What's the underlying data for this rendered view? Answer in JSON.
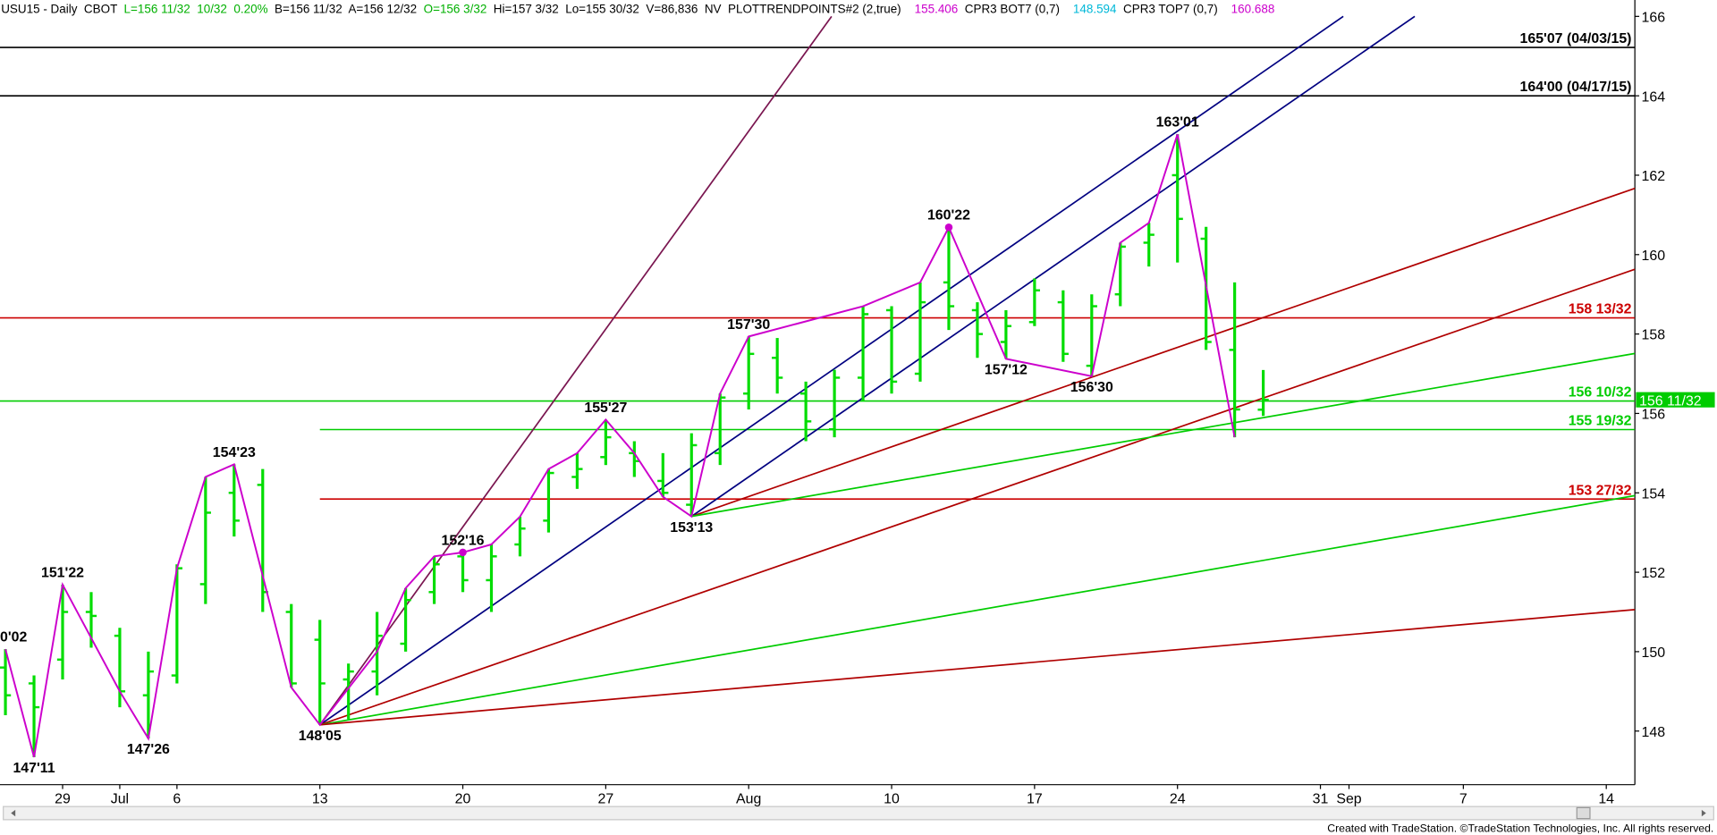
{
  "chart_data": {
    "type": "ohlc",
    "header": [
      {
        "text": "USU15 - Daily  CBOT  ",
        "color": "#000000"
      },
      {
        "text": "L=156 11/32  10/32  0.20%  ",
        "color": "#00b000"
      },
      {
        "text": "B=156 11/32  A=156 12/32  ",
        "color": "#000000"
      },
      {
        "text": "O=156 3/32  ",
        "color": "#00b000"
      },
      {
        "text": "Hi=157 3/32  Lo=155 30/32  V=86,836  NV  PLOTTRENDPOINTS#2 (2,true)    ",
        "color": "#000000"
      },
      {
        "text": "155.406",
        "color": "#cc00cc"
      },
      {
        "text": "  CPR3 BOT7 (0,7)    ",
        "color": "#000000"
      },
      {
        "text": "148.594",
        "color": "#00b8d8"
      },
      {
        "text": "  CPR3 TOP7 (0,7)    ",
        "color": "#000000"
      },
      {
        "text": "160.688",
        "color": "#cc00cc"
      }
    ],
    "footer": "Created with TradeStation. ©TradeStation Technologies, Inc. All rights reserved.",
    "xlim": [
      -0.19,
      57
    ],
    "ylim": [
      146.65,
      166.33
    ],
    "xticks": [
      {
        "value": 2,
        "label": "29"
      },
      {
        "value": 4,
        "label": "Jul"
      },
      {
        "value": 6,
        "label": "6"
      },
      {
        "value": 11,
        "label": "13"
      },
      {
        "value": 16,
        "label": "20"
      },
      {
        "value": 21,
        "label": "27"
      },
      {
        "value": 26,
        "label": "Aug"
      },
      {
        "value": 31,
        "label": "10"
      },
      {
        "value": 36,
        "label": "17"
      },
      {
        "value": 41,
        "label": "24"
      },
      {
        "value": 46,
        "label": "31"
      },
      {
        "value": 47,
        "label": "Sep"
      },
      {
        "value": 51,
        "label": "7"
      },
      {
        "value": 56,
        "label": "14"
      }
    ],
    "yticks": [
      148,
      150,
      152,
      154,
      156,
      158,
      160,
      162,
      164,
      166
    ],
    "bar_color": "#00dd00",
    "x": [
      0,
      1,
      2,
      3,
      4,
      5,
      6,
      7,
      8,
      9,
      10,
      11,
      12,
      13,
      14,
      15,
      16,
      17,
      18,
      19,
      20,
      21,
      22,
      23,
      24,
      25,
      26,
      27,
      28,
      29,
      30,
      31,
      32,
      33,
      34,
      35,
      36,
      37,
      38,
      39,
      40,
      41,
      42,
      43,
      44
    ],
    "open": [
      149.6,
      149.2,
      149.8,
      151.0,
      150.4,
      148.9,
      149.4,
      151.7,
      154.0,
      154.2,
      151.0,
      150.3,
      149.3,
      149.5,
      150.2,
      151.5,
      152.4,
      151.8,
      152.7,
      153.3,
      154.4,
      154.9,
      155.0,
      154.3,
      153.7,
      155.0,
      156.5,
      157.4,
      156.5,
      155.6,
      156.9,
      158.6,
      157.0,
      159.3,
      158.6,
      157.8,
      158.3,
      158.8,
      157.2,
      159.0,
      160.3,
      162.0,
      160.4,
      157.6,
      156.09375
    ],
    "high": [
      150.0625,
      149.4,
      151.6875,
      151.5,
      150.6,
      150.0,
      152.2,
      154.4,
      154.71875,
      154.6,
      151.2,
      150.8,
      149.7,
      151.0,
      151.6,
      152.4,
      152.5,
      152.7,
      153.4,
      154.6,
      155.0,
      155.84375,
      155.3,
      155.0,
      155.5,
      156.5,
      157.9375,
      157.9,
      156.8,
      157.1,
      158.7,
      158.7,
      159.3,
      160.6875,
      158.8,
      158.6,
      159.4,
      159.1,
      159.0,
      160.3,
      160.8,
      163.03125,
      160.7,
      159.3,
      157.09375
    ],
    "low": [
      148.4,
      147.34375,
      149.3,
      150.1,
      148.6,
      147.8125,
      149.2,
      151.2,
      152.9,
      151.0,
      149.1,
      148.15625,
      148.3,
      148.9,
      150.0,
      151.2,
      151.5,
      151.0,
      152.4,
      153.0,
      154.1,
      154.7,
      154.4,
      153.9,
      153.40625,
      154.7,
      156.1,
      156.5,
      155.3,
      155.4,
      156.3,
      156.5,
      156.8,
      158.1,
      157.4,
      157.375,
      158.2,
      157.3,
      156.9375,
      158.7,
      159.7,
      159.8,
      157.6,
      155.4,
      155.9375
    ],
    "close": [
      148.9,
      148.6,
      151.0,
      150.9,
      149.0,
      149.5,
      152.1,
      153.5,
      153.3,
      151.5,
      149.2,
      149.2,
      149.5,
      150.4,
      151.3,
      152.2,
      151.8,
      152.4,
      153.1,
      154.5,
      154.6,
      155.4,
      154.8,
      154.0,
      155.2,
      156.4,
      157.5,
      156.9,
      155.8,
      156.9,
      158.5,
      156.8,
      158.8,
      158.7,
      158.0,
      158.2,
      159.1,
      157.5,
      158.7,
      160.2,
      160.5,
      160.9,
      157.8,
      156.1,
      156.34375
    ],
    "zigzag": {
      "color": "#cc00cc",
      "x": [
        0,
        1,
        2,
        4,
        5,
        6,
        7,
        8,
        10,
        11,
        13,
        14,
        15,
        16,
        17,
        18,
        19,
        20,
        21,
        22,
        23,
        24,
        25,
        26,
        30,
        32,
        33,
        35,
        38,
        39,
        40,
        41,
        43
      ],
      "values": [
        150.0625,
        147.34375,
        151.6875,
        149.0,
        147.8125,
        152.1,
        154.4,
        154.71875,
        149.1,
        148.15625,
        150.0,
        151.6,
        152.4,
        152.5,
        152.7,
        153.4,
        154.6,
        155.0,
        155.84375,
        155.0,
        153.9,
        153.40625,
        156.5,
        157.9375,
        158.7,
        159.3,
        160.6875,
        157.375,
        156.9375,
        160.3,
        160.8,
        163.03125,
        155.4
      ]
    },
    "markers": [
      {
        "x": 16,
        "value": 152.5
      },
      {
        "x": 33,
        "value": 160.6875
      }
    ],
    "pivots": [
      {
        "x": 0,
        "value": 150.0625,
        "label": "0'02",
        "pos": "above"
      },
      {
        "x": 1,
        "value": 147.34375,
        "label": "147'11",
        "pos": "below"
      },
      {
        "x": 2,
        "value": 151.6875,
        "label": "151'22",
        "pos": "above"
      },
      {
        "x": 5,
        "value": 147.8125,
        "label": "147'26",
        "pos": "below"
      },
      {
        "x": 8,
        "value": 154.71875,
        "label": "154'23",
        "pos": "above"
      },
      {
        "x": 11,
        "value": 148.15625,
        "label": "148'05",
        "pos": "below"
      },
      {
        "x": 16,
        "value": 152.5,
        "label": "152'16",
        "pos": "above"
      },
      {
        "x": 21,
        "value": 155.84375,
        "label": "155'27",
        "pos": "above"
      },
      {
        "x": 24,
        "value": 153.40625,
        "label": "153'13",
        "pos": "below"
      },
      {
        "x": 26,
        "value": 157.9375,
        "label": "157'30",
        "pos": "above"
      },
      {
        "x": 33,
        "value": 160.6875,
        "label": "160'22",
        "pos": "above"
      },
      {
        "x": 35,
        "value": 157.375,
        "label": "157'12",
        "pos": "below"
      },
      {
        "x": 38,
        "value": 156.9375,
        "label": "156'30",
        "pos": "below"
      },
      {
        "x": 41,
        "value": 163.03125,
        "label": "163'01",
        "pos": "above"
      }
    ],
    "levels": [
      {
        "value": 165.21875,
        "label": "165'07 (04/03/15)",
        "color": "#000000"
      },
      {
        "value": 164,
        "label": "164'00 (04/17/15)",
        "color": "#000000"
      },
      {
        "value": 158.40625,
        "label": "158 13/32",
        "color": "#cc0000"
      },
      {
        "value": 156.3125,
        "label": "156 10/32",
        "color": "#00cc00"
      },
      {
        "value": 155.59375,
        "label": "155 19/32",
        "color": "#00cc00",
        "from": 11
      },
      {
        "value": 153.84375,
        "label": "153 27/32",
        "color": "#cc0000",
        "from": 11
      }
    ],
    "trendlines": [
      {
        "color": "#7a1650",
        "x": [
          11,
          28.9
        ],
        "values": [
          148.15625,
          166
        ]
      },
      {
        "color": "#000080",
        "x": [
          11,
          46.8
        ],
        "values": [
          148.15625,
          166
        ]
      },
      {
        "color": "#000080",
        "x": [
          24,
          49.3
        ],
        "values": [
          153.40625,
          166
        ]
      },
      {
        "color": "#b00000",
        "x": [
          11,
          57
        ],
        "values": [
          148.15625,
          159.63
        ]
      },
      {
        "color": "#b00000",
        "x": [
          24,
          57
        ],
        "values": [
          153.40625,
          161.67
        ]
      },
      {
        "color": "#00cc00",
        "x": [
          24,
          57
        ],
        "values": [
          153.40625,
          157.51
        ]
      },
      {
        "color": "#00cc00",
        "x": [
          11,
          57
        ],
        "values": [
          148.15625,
          153.93
        ]
      },
      {
        "color": "#b00000",
        "x": [
          11,
          57
        ],
        "values": [
          148.15625,
          151.06
        ]
      }
    ],
    "last_price": {
      "value": 156.34375,
      "label": "156 11/32",
      "color": "#00cc00"
    }
  }
}
